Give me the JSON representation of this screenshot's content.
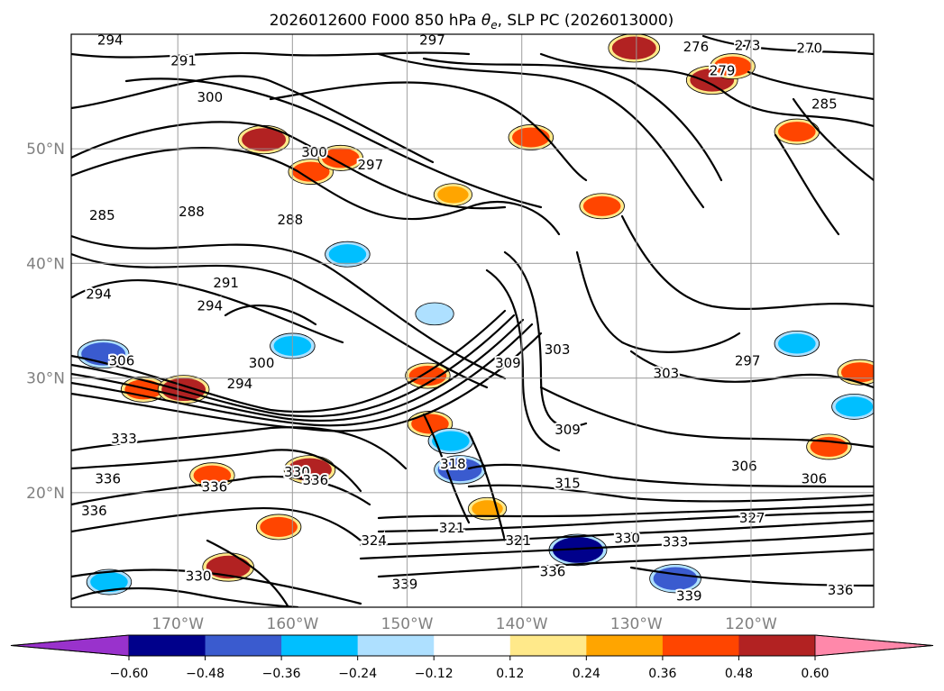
{
  "chart_data": {
    "type": "contour-map",
    "title_parts": [
      "2026012600 F000 850 hPa ",
      "θ",
      "e",
      ", SLP PC (2026013000)"
    ],
    "map": {
      "lon_range": [
        -179.3,
        -109.3
      ],
      "lat_range": [
        10,
        60
      ],
      "meridians": [
        -170,
        -160,
        -150,
        -140,
        -130,
        -120
      ],
      "parallels": [
        20,
        30,
        40,
        50
      ],
      "lon_tick_labels": [
        "170°W",
        "160°W",
        "150°W",
        "140°W",
        "130°W",
        "120°W"
      ],
      "lat_tick_labels": [
        "20°N",
        "30°N",
        "40°N",
        "50°N"
      ],
      "grid": true
    },
    "colorbar": {
      "orientation": "horizontal",
      "extend": "both",
      "levels": [
        -0.6,
        -0.48,
        -0.36,
        -0.24,
        -0.12,
        0.12,
        0.24,
        0.36,
        0.48,
        0.6
      ],
      "tick_labels": [
        "−0.60",
        "−0.48",
        "−0.36",
        "−0.24",
        "−0.12",
        "0.12",
        "0.24",
        "0.36",
        "0.48",
        "0.60"
      ],
      "colors": [
        "#9932cc",
        "#00008b",
        "#3a5bcf",
        "#00bfff",
        "#aee0ff",
        "#ffffff",
        "#ffe98a",
        "#ffa500",
        "#ff4500",
        "#b22222",
        "#ff88aa"
      ]
    },
    "theta_e_contour_labels": [
      {
        "value": "294",
        "lon": -175.9,
        "lat": 59.5
      },
      {
        "value": "291",
        "lon": -169.5,
        "lat": 57.7
      },
      {
        "value": "297",
        "lon": -147.8,
        "lat": 59.5
      },
      {
        "value": "276",
        "lon": -124.8,
        "lat": 58.9
      },
      {
        "value": "273",
        "lon": -120.3,
        "lat": 59.0
      },
      {
        "value": "270",
        "lon": -114.9,
        "lat": 58.8
      },
      {
        "value": "279",
        "lon": -122.5,
        "lat": 56.8
      },
      {
        "value": "285",
        "lon": -113.6,
        "lat": 53.9
      },
      {
        "value": "300",
        "lon": -167.2,
        "lat": 54.5
      },
      {
        "value": "300",
        "lon": -158.1,
        "lat": 49.7
      },
      {
        "value": "297",
        "lon": -153.2,
        "lat": 48.6
      },
      {
        "value": "285",
        "lon": -176.6,
        "lat": 44.2
      },
      {
        "value": "288",
        "lon": -168.8,
        "lat": 44.5
      },
      {
        "value": "288",
        "lon": -160.2,
        "lat": 43.8
      },
      {
        "value": "291",
        "lon": -165.8,
        "lat": 38.3
      },
      {
        "value": "294",
        "lon": -167.2,
        "lat": 36.3
      },
      {
        "value": "294",
        "lon": -176.9,
        "lat": 37.3
      },
      {
        "value": "306",
        "lon": -174.9,
        "lat": 31.5
      },
      {
        "value": "300",
        "lon": -162.7,
        "lat": 31.3
      },
      {
        "value": "294",
        "lon": -164.6,
        "lat": 29.5
      },
      {
        "value": "303",
        "lon": -136.9,
        "lat": 32.5
      },
      {
        "value": "309",
        "lon": -141.2,
        "lat": 31.3
      },
      {
        "value": "303",
        "lon": -127.4,
        "lat": 30.4
      },
      {
        "value": "309",
        "lon": -136.0,
        "lat": 25.5
      },
      {
        "value": "297",
        "lon": -120.3,
        "lat": 31.5
      },
      {
        "value": "306",
        "lon": -120.6,
        "lat": 22.3
      },
      {
        "value": "306",
        "lon": -114.5,
        "lat": 21.2
      },
      {
        "value": "333",
        "lon": -174.7,
        "lat": 24.7
      },
      {
        "value": "336",
        "lon": -176.1,
        "lat": 21.2
      },
      {
        "value": "330",
        "lon": -159.6,
        "lat": 21.8
      },
      {
        "value": "336",
        "lon": -158.0,
        "lat": 21.1
      },
      {
        "value": "336",
        "lon": -166.8,
        "lat": 20.5
      },
      {
        "value": "336",
        "lon": -177.3,
        "lat": 18.4
      },
      {
        "value": "318",
        "lon": -146.0,
        "lat": 22.5
      },
      {
        "value": "315",
        "lon": -136.0,
        "lat": 20.8
      },
      {
        "value": "327",
        "lon": -119.9,
        "lat": 17.8
      },
      {
        "value": "324",
        "lon": -152.9,
        "lat": 15.8
      },
      {
        "value": "321",
        "lon": -146.1,
        "lat": 16.9
      },
      {
        "value": "321",
        "lon": -140.3,
        "lat": 15.8
      },
      {
        "value": "330",
        "lon": -130.8,
        "lat": 16.0
      },
      {
        "value": "333",
        "lon": -126.6,
        "lat": 15.7
      },
      {
        "value": "336",
        "lon": -137.3,
        "lat": 13.1
      },
      {
        "value": "339",
        "lon": -150.2,
        "lat": 12.0
      },
      {
        "value": "339",
        "lon": -125.4,
        "lat": 11.0
      },
      {
        "value": "336",
        "lon": -112.2,
        "lat": 11.5
      },
      {
        "value": "330",
        "lon": -168.2,
        "lat": 12.7
      }
    ],
    "slp_pc_anomalies": [
      {
        "lon": -162.5,
        "lat": 50.8,
        "value": 0.48
      },
      {
        "lon": -158.4,
        "lat": 48.0,
        "value": 0.36
      },
      {
        "lon": -155.8,
        "lat": 49.2,
        "value": 0.36
      },
      {
        "lon": -146.0,
        "lat": 46.0,
        "value": 0.24
      },
      {
        "lon": -139.2,
        "lat": 51.0,
        "value": 0.36
      },
      {
        "lon": -133.0,
        "lat": 45.0,
        "value": 0.36
      },
      {
        "lon": -130.2,
        "lat": 58.8,
        "value": 0.48
      },
      {
        "lon": -123.4,
        "lat": 56.0,
        "value": 0.48
      },
      {
        "lon": -121.6,
        "lat": 57.2,
        "value": 0.36
      },
      {
        "lon": -116.0,
        "lat": 51.5,
        "value": 0.36
      },
      {
        "lon": -155.2,
        "lat": 40.8,
        "value": -0.36
      },
      {
        "lon": -147.6,
        "lat": 35.6,
        "value": -0.24
      },
      {
        "lon": -148.2,
        "lat": 30.2,
        "value": 0.36
      },
      {
        "lon": -148.0,
        "lat": 26.0,
        "value": 0.36
      },
      {
        "lon": -160.0,
        "lat": 32.8,
        "value": -0.36
      },
      {
        "lon": -176.5,
        "lat": 32.1,
        "value": -0.48
      },
      {
        "lon": -173.0,
        "lat": 29.0,
        "value": 0.36
      },
      {
        "lon": -169.5,
        "lat": 29.0,
        "value": 0.48
      },
      {
        "lon": -145.4,
        "lat": 22.0,
        "value": -0.48
      },
      {
        "lon": -146.2,
        "lat": 24.5,
        "value": -0.36
      },
      {
        "lon": -135.1,
        "lat": 15.0,
        "value": -0.6
      },
      {
        "lon": -126.6,
        "lat": 12.5,
        "value": -0.48
      },
      {
        "lon": -116.0,
        "lat": 33.0,
        "value": -0.36
      },
      {
        "lon": -111.0,
        "lat": 27.5,
        "value": -0.36
      },
      {
        "lon": -113.2,
        "lat": 24.0,
        "value": 0.36
      },
      {
        "lon": -167.0,
        "lat": 21.5,
        "value": 0.36
      },
      {
        "lon": -158.5,
        "lat": 22.0,
        "value": 0.48
      },
      {
        "lon": -161.2,
        "lat": 17.0,
        "value": 0.36
      },
      {
        "lon": -165.6,
        "lat": 13.5,
        "value": 0.48
      },
      {
        "lon": -176.0,
        "lat": 12.2,
        "value": -0.36
      },
      {
        "lon": -143.0,
        "lat": 18.6,
        "value": 0.24
      },
      {
        "lon": -110.5,
        "lat": 30.5,
        "value": 0.36
      }
    ]
  }
}
